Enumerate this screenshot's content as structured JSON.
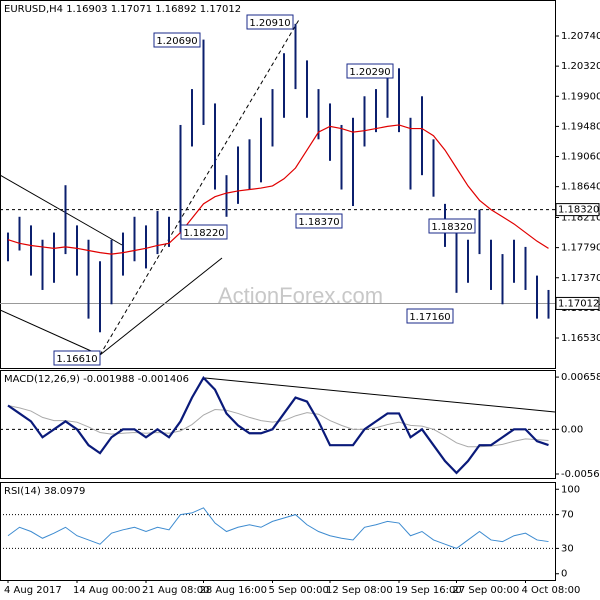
{
  "chart_data": [
    {
      "type": "ohlc",
      "title": "EURUSD,H4  1.16903 1.17071 1.16892 1.17012",
      "watermark": "ActionForex.com",
      "high": [
        1.18,
        1.1822,
        1.181,
        1.179,
        1.18,
        1.1866,
        1.181,
        1.179,
        1.176,
        1.179,
        1.18,
        1.1822,
        1.181,
        1.183,
        1.1822,
        1.195,
        1.2,
        1.2069,
        1.198,
        1.188,
        1.192,
        1.193,
        1.196,
        1.2,
        1.205,
        1.2091,
        1.204,
        1.2,
        1.198,
        1.195,
        1.196,
        1.199,
        1.2,
        1.202,
        1.2029,
        1.196,
        1.199,
        1.193,
        1.184,
        1.18,
        1.179,
        1.1832,
        1.179,
        1.177,
        1.179,
        1.178,
        1.174,
        1.172
      ],
      "low": [
        1.176,
        1.1775,
        1.174,
        1.172,
        1.173,
        1.177,
        1.174,
        1.168,
        1.1661,
        1.17,
        1.174,
        1.176,
        1.175,
        1.177,
        1.178,
        1.18,
        1.192,
        1.195,
        1.186,
        1.1822,
        1.184,
        1.186,
        1.187,
        1.192,
        1.196,
        1.2,
        1.196,
        1.193,
        1.19,
        1.186,
        1.1837,
        1.192,
        1.194,
        1.196,
        1.194,
        1.186,
        1.188,
        1.185,
        1.178,
        1.1716,
        1.173,
        1.177,
        1.172,
        1.17,
        1.173,
        1.172,
        1.168,
        1.168
      ],
      "ma": [
        1.179,
        1.1785,
        1.1782,
        1.178,
        1.1778,
        1.178,
        1.1778,
        1.1775,
        1.1772,
        1.177,
        1.1772,
        1.1775,
        1.1778,
        1.1782,
        1.1785,
        1.18,
        1.182,
        1.184,
        1.185,
        1.1855,
        1.1858,
        1.186,
        1.1862,
        1.1865,
        1.1875,
        1.189,
        1.1915,
        1.194,
        1.1948,
        1.1945,
        1.194,
        1.1942,
        1.1945,
        1.1948,
        1.195,
        1.1945,
        1.1945,
        1.1935,
        1.1915,
        1.189,
        1.1865,
        1.1845,
        1.1832,
        1.1822,
        1.1812,
        1.18,
        1.1788,
        1.1778
      ],
      "bar_color": "#0b1f6e",
      "ma_color": "#e00000",
      "ylim": [
        1.16112,
        1.21242
      ],
      "yticks": [
        {
          "value": 1.2074,
          "label": "1.20740"
        },
        {
          "value": 1.2032,
          "label": "1.20320"
        },
        {
          "value": 1.199,
          "label": "1.19900"
        },
        {
          "value": 1.1948,
          "label": "1.19480"
        },
        {
          "value": 1.1906,
          "label": "1.19060"
        },
        {
          "value": 1.1864,
          "label": "1.18640"
        },
        {
          "value": 1.1821,
          "label": "1.18210"
        },
        {
          "value": 1.1779,
          "label": "1.17790"
        },
        {
          "value": 1.1737,
          "label": "1.17370"
        },
        {
          "value": 1.1695,
          "label": "1.16950"
        },
        {
          "value": 1.1653,
          "label": "1.16530"
        }
      ],
      "hlines": [
        {
          "value": 1.1832,
          "label": "1.18320"
        },
        {
          "value": 1.17012,
          "label": "1.17012"
        }
      ],
      "annotations": [
        "1.20690",
        "1.20910",
        "1.20290",
        "1.18370",
        "1.18320",
        "1.18220",
        "1.17160",
        "1.16610"
      ]
    },
    {
      "type": "macd",
      "title": "MACD(12,26,9) -0.001988 -0.001406",
      "series": [
        {
          "color": "#0a1a7a",
          "values": [
            0.003,
            0.002,
            0.001,
            -0.001,
            0.0,
            0.001,
            0.0,
            -0.002,
            -0.003,
            -0.001,
            0.0,
            0.0,
            -0.001,
            0.0,
            -0.001,
            0.001,
            0.004,
            0.0065,
            0.005,
            0.002,
            0.0005,
            -0.0005,
            -0.0005,
            0.0,
            0.002,
            0.004,
            0.0035,
            0.001,
            -0.002,
            -0.002,
            -0.002,
            0.0,
            0.001,
            0.002,
            0.002,
            -0.001,
            0.0,
            -0.002,
            -0.004,
            -0.0055,
            -0.004,
            -0.002,
            -0.002,
            -0.001,
            0.0,
            0.0,
            -0.0015,
            -0.001988
          ]
        },
        {
          "color": "#aaaaaa",
          "values": [
            0.003,
            0.0027,
            0.0023,
            0.0015,
            0.0011,
            0.0011,
            0.0009,
            0.0003,
            -0.0004,
            -0.0006,
            -0.0005,
            -0.0004,
            -0.0005,
            -0.0004,
            -0.0005,
            -0.0002,
            0.0006,
            0.0018,
            0.0025,
            0.0024,
            0.002,
            0.0015,
            0.0011,
            0.0009,
            0.0011,
            0.0017,
            0.0021,
            0.0019,
            0.0011,
            0.0005,
            0.0,
            0.0,
            0.0002,
            0.0006,
            0.0009,
            0.0005,
            0.0004,
            0.0,
            -0.0008,
            -0.0017,
            -0.0022,
            -0.0022,
            -0.0021,
            -0.0019,
            -0.0015,
            -0.0012,
            -0.0013,
            -0.001406
          ]
        }
      ],
      "ylim": [
        -0.00614,
        0.00748
      ],
      "yticks": [
        0.006586,
        {
          "value": 0,
          "label": "0.00"
        },
        -0.005634
      ]
    },
    {
      "type": "rsi",
      "title": "RSI(14) 38.0979",
      "categories": [
        "4 Aug 2017",
        null,
        null,
        null,
        null,
        null,
        "14 Aug 00:00",
        null,
        null,
        null,
        null,
        null,
        "21 Aug 08:00",
        null,
        null,
        null,
        null,
        "28 Aug 16:00",
        null,
        null,
        null,
        null,
        null,
        "5 Sep 00:00",
        null,
        null,
        null,
        null,
        "12 Sep 08:00",
        null,
        null,
        null,
        null,
        null,
        "19 Sep 16:00",
        null,
        null,
        null,
        null,
        "27 Sep 00:00",
        null,
        null,
        null,
        null,
        null,
        "4 Oct 08:00",
        null,
        null
      ],
      "values": [
        45,
        55,
        50,
        42,
        48,
        55,
        45,
        40,
        35,
        48,
        52,
        55,
        50,
        55,
        52,
        70,
        72,
        78,
        60,
        50,
        55,
        58,
        55,
        62,
        66,
        70,
        58,
        50,
        45,
        42,
        40,
        55,
        58,
        62,
        60,
        45,
        50,
        40,
        35,
        30,
        40,
        50,
        40,
        38,
        45,
        48,
        40,
        38.0979
      ],
      "color": "#3d8bd0",
      "ylim": [
        -7.4,
        108.6
      ],
      "yticks": [
        100,
        70,
        30,
        0
      ],
      "levels": [
        70,
        30
      ]
    }
  ]
}
